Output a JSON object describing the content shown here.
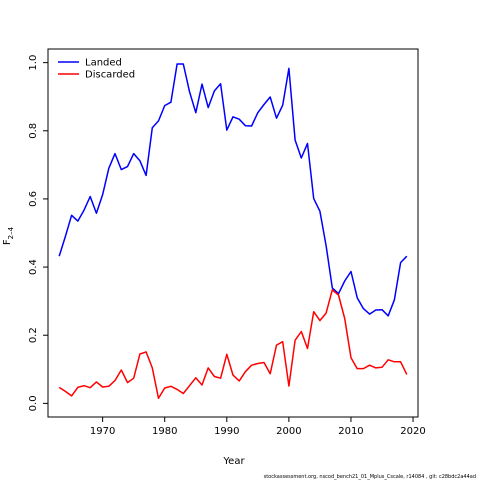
{
  "chart_data": {
    "type": "line",
    "title": "",
    "xlabel": "Year",
    "ylabel_main": "F",
    "ylabel_sub": "2–4",
    "xlim": [
      1961.2,
      2020.8
    ],
    "ylim": [
      -0.04,
      1.04
    ],
    "xticks": [
      1970,
      1980,
      1990,
      2000,
      2010,
      2020
    ],
    "yticks": [
      "0.0",
      "0.2",
      "0.4",
      "0.6",
      "0.8",
      "1.0"
    ],
    "legend_position": "top-left",
    "grid": false,
    "x": [
      1963,
      1964,
      1965,
      1966,
      1967,
      1968,
      1969,
      1970,
      1971,
      1972,
      1973,
      1974,
      1975,
      1976,
      1977,
      1978,
      1979,
      1980,
      1981,
      1982,
      1983,
      1984,
      1985,
      1986,
      1987,
      1988,
      1989,
      1990,
      1991,
      1992,
      1993,
      1994,
      1995,
      1996,
      1997,
      1998,
      1999,
      2000,
      2001,
      2002,
      2003,
      2004,
      2005,
      2006,
      2007,
      2008,
      2009,
      2010,
      2011,
      2012,
      2013,
      2014,
      2015,
      2016,
      2017,
      2018,
      2019
    ],
    "series": [
      {
        "name": "Landed",
        "color": "#0000ff",
        "values": [
          0.432,
          0.49,
          0.552,
          0.535,
          0.567,
          0.607,
          0.558,
          0.612,
          0.69,
          0.733,
          0.686,
          0.695,
          0.733,
          0.712,
          0.669,
          0.809,
          0.829,
          0.874,
          0.884,
          0.996,
          0.996,
          0.915,
          0.853,
          0.937,
          0.868,
          0.917,
          0.938,
          0.802,
          0.841,
          0.834,
          0.815,
          0.814,
          0.853,
          0.877,
          0.899,
          0.837,
          0.875,
          0.983,
          0.773,
          0.72,
          0.763,
          0.601,
          0.564,
          0.463,
          0.339,
          0.322,
          0.359,
          0.387,
          0.31,
          0.278,
          0.262,
          0.274,
          0.275,
          0.257,
          0.304,
          0.413,
          0.432
        ]
      },
      {
        "name": "Discarded",
        "color": "#ff0000",
        "values": [
          0.047,
          0.035,
          0.022,
          0.047,
          0.052,
          0.046,
          0.063,
          0.048,
          0.05,
          0.067,
          0.098,
          0.061,
          0.074,
          0.145,
          0.151,
          0.104,
          0.015,
          0.045,
          0.05,
          0.041,
          0.029,
          0.052,
          0.075,
          0.054,
          0.104,
          0.079,
          0.074,
          0.144,
          0.083,
          0.066,
          0.093,
          0.112,
          0.117,
          0.12,
          0.087,
          0.171,
          0.181,
          0.051,
          0.185,
          0.211,
          0.161,
          0.269,
          0.243,
          0.265,
          0.333,
          0.318,
          0.249,
          0.134,
          0.102,
          0.102,
          0.112,
          0.104,
          0.106,
          0.128,
          0.122,
          0.122,
          0.085
        ]
      }
    ]
  },
  "footer": "stockassessment.org,  nscod_bench21_01_Mplus_Cscale,  r14084 ,  git: c28bdc2a44ad"
}
